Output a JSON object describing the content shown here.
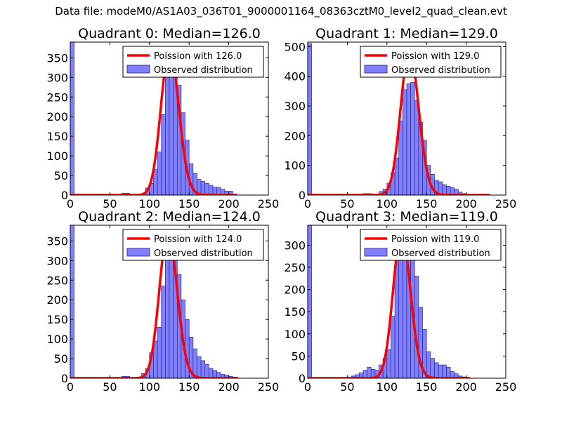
{
  "figure": {
    "suptitle": "Data file: modeM0/AS1A03_036T01_9000001164_08363cztM0_level2_quad_clean.evt"
  },
  "colors": {
    "histogram_fill": "#7f7fff",
    "histogram_edge": "#1e1e78",
    "poisson_line": "#ff0000",
    "axes": "#000000",
    "legend_border": "#000000"
  },
  "chart_data": [
    {
      "type": "bar",
      "title": "Quadrant 0: Median=126.0",
      "median": 126.0,
      "xlim": [
        0,
        250
      ],
      "ylim": [
        0,
        390
      ],
      "xticks": [
        0,
        50,
        100,
        150,
        200,
        250
      ],
      "yticks": [
        0,
        50,
        100,
        150,
        200,
        250,
        300,
        350
      ],
      "legend": {
        "placement": "top-right",
        "entries": [
          "Poission with 126.0",
          "Observed distribution"
        ]
      },
      "bin_width": 5,
      "bin_starts": [
        0,
        65,
        70,
        95,
        100,
        105,
        110,
        115,
        120,
        125,
        130,
        135,
        140,
        145,
        150,
        155,
        160,
        165,
        170,
        175,
        180,
        185,
        190,
        195,
        200,
        205
      ],
      "values": [
        390,
        5,
        5,
        18,
        30,
        65,
        110,
        205,
        320,
        355,
        330,
        280,
        210,
        140,
        80,
        55,
        40,
        35,
        30,
        25,
        20,
        20,
        15,
        10,
        10,
        3
      ],
      "poisson_mean": 126.0,
      "poisson_peak": 372,
      "poisson_range": [
        0,
        210
      ]
    },
    {
      "type": "bar",
      "title": "Quadrant 1: Median=129.0",
      "median": 129.0,
      "xlim": [
        0,
        250
      ],
      "ylim": [
        0,
        515
      ],
      "xticks": [
        0,
        50,
        100,
        150,
        200,
        250
      ],
      "yticks": [
        0,
        100,
        200,
        300,
        400,
        500
      ],
      "legend": {
        "placement": "top-right",
        "entries": [
          "Poission with 129.0",
          "Observed distribution"
        ]
      },
      "bin_width": 5,
      "bin_starts": [
        0,
        70,
        75,
        90,
        95,
        100,
        105,
        110,
        115,
        120,
        125,
        130,
        135,
        140,
        145,
        150,
        155,
        160,
        165,
        170,
        175,
        180,
        185,
        190,
        195
      ],
      "values": [
        510,
        5,
        5,
        12,
        20,
        40,
        75,
        125,
        250,
        355,
        375,
        380,
        320,
        245,
        185,
        100,
        70,
        50,
        45,
        35,
        30,
        25,
        20,
        10,
        5
      ],
      "poisson_mean": 129.0,
      "poisson_peak": 485,
      "poisson_range": [
        0,
        230
      ]
    },
    {
      "type": "bar",
      "title": "Quadrant 2: Median=124.0",
      "median": 124.0,
      "xlim": [
        0,
        250
      ],
      "ylim": [
        0,
        390
      ],
      "xticks": [
        0,
        50,
        100,
        150,
        200,
        250
      ],
      "yticks": [
        0,
        50,
        100,
        150,
        200,
        250,
        300,
        350
      ],
      "legend": {
        "placement": "top-right",
        "entries": [
          "Poission with 124.0",
          "Observed distribution"
        ]
      },
      "bin_width": 5,
      "bin_starts": [
        0,
        65,
        70,
        90,
        95,
        100,
        105,
        110,
        115,
        120,
        125,
        130,
        135,
        140,
        145,
        150,
        155,
        160,
        165,
        170,
        175,
        180,
        185,
        190,
        195,
        200,
        205
      ],
      "values": [
        390,
        5,
        5,
        12,
        25,
        65,
        95,
        130,
        235,
        320,
        360,
        340,
        265,
        200,
        150,
        105,
        75,
        55,
        45,
        35,
        25,
        20,
        15,
        10,
        8,
        5,
        3
      ],
      "poisson_mean": 124.0,
      "poisson_peak": 375,
      "poisson_range": [
        0,
        212
      ]
    },
    {
      "type": "bar",
      "title": "Quadrant 3: Median=119.0",
      "median": 119.0,
      "xlim": [
        0,
        250
      ],
      "ylim": [
        0,
        345
      ],
      "xticks": [
        0,
        50,
        100,
        150,
        200,
        250
      ],
      "yticks": [
        0,
        50,
        100,
        150,
        200,
        250,
        300
      ],
      "legend": {
        "placement": "top-right",
        "entries": [
          "Poission with 119.0",
          "Observed distribution"
        ]
      },
      "bin_width": 5,
      "bin_starts": [
        0,
        55,
        60,
        65,
        70,
        75,
        80,
        85,
        90,
        95,
        100,
        105,
        110,
        115,
        120,
        125,
        130,
        135,
        140,
        145,
        150,
        155,
        160,
        165,
        170,
        175,
        180,
        185,
        190,
        195
      ],
      "values": [
        345,
        5,
        8,
        12,
        18,
        25,
        20,
        18,
        30,
        45,
        65,
        140,
        290,
        310,
        300,
        285,
        275,
        230,
        160,
        110,
        60,
        45,
        35,
        30,
        30,
        25,
        15,
        10,
        5,
        3
      ],
      "poisson_mean": 119.0,
      "poisson_peak": 328,
      "poisson_range": [
        0,
        205
      ]
    }
  ]
}
